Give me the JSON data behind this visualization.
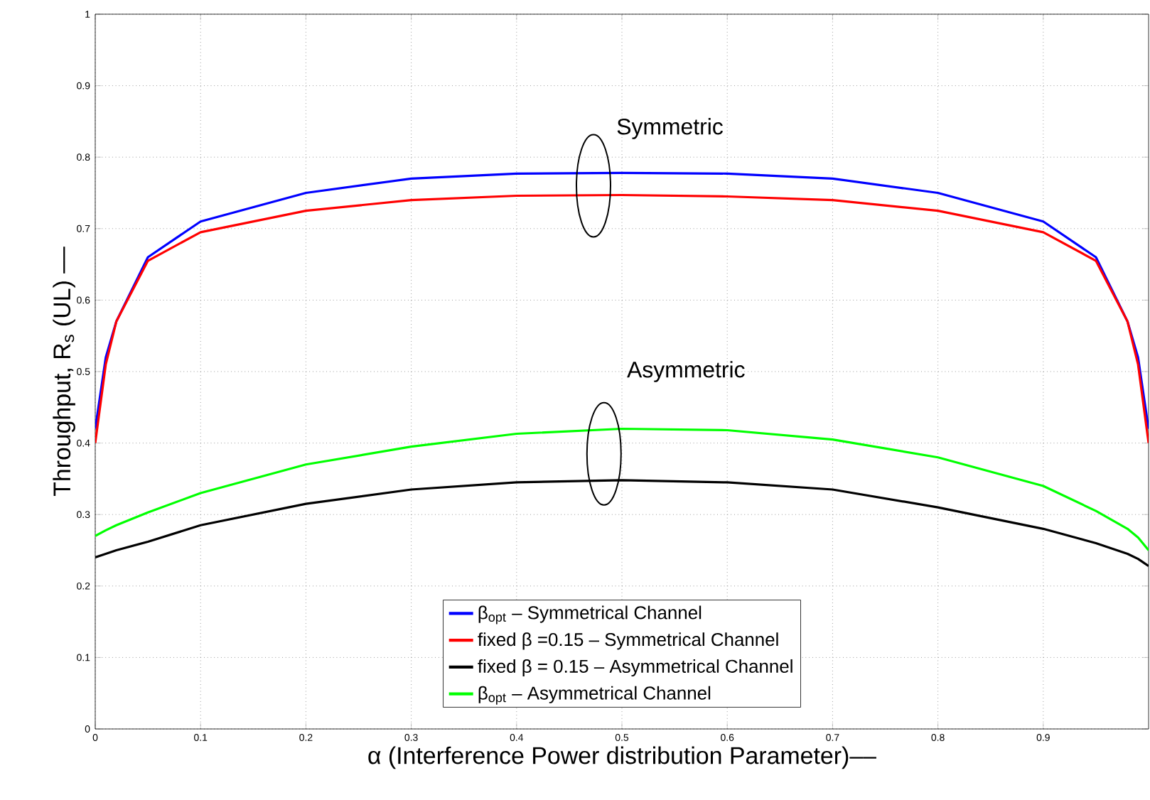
{
  "chart_data": {
    "type": "line",
    "xlabel": "α (Interference Power distribution Parameter)––",
    "ylabel": "Throughput, R$_{s}$ (UL) ––",
    "x": [
      0,
      0.01,
      0.02,
      0.05,
      0.1,
      0.2,
      0.3,
      0.4,
      0.5,
      0.6,
      0.7,
      0.8,
      0.9,
      0.95,
      0.98,
      0.99,
      1
    ],
    "series": [
      {
        "name": "β$_{opt}$ – Symmetrical Channel",
        "color": "#0000ff",
        "values": [
          0.42,
          0.52,
          0.57,
          0.66,
          0.71,
          0.75,
          0.77,
          0.777,
          0.778,
          0.777,
          0.77,
          0.75,
          0.71,
          0.66,
          0.57,
          0.52,
          0.42
        ]
      },
      {
        "name": "fixed β =0.15 – Symmetrical Channel",
        "color": "#ff0000",
        "values": [
          0.4,
          0.51,
          0.57,
          0.655,
          0.695,
          0.725,
          0.74,
          0.746,
          0.747,
          0.745,
          0.74,
          0.725,
          0.695,
          0.655,
          0.57,
          0.51,
          0.4
        ]
      },
      {
        "name": "fixed β = 0.15 – Asymmetrical Channel",
        "color": "#000000",
        "values": [
          0.24,
          0.245,
          0.25,
          0.262,
          0.285,
          0.315,
          0.335,
          0.345,
          0.348,
          0.345,
          0.335,
          0.31,
          0.28,
          0.26,
          0.245,
          0.238,
          0.228
        ]
      },
      {
        "name": "β$_{opt}$ – Asymmetrical Channel",
        "color": "#00ff00",
        "values": [
          0.27,
          0.278,
          0.285,
          0.303,
          0.33,
          0.37,
          0.395,
          0.413,
          0.42,
          0.418,
          0.405,
          0.38,
          0.34,
          0.305,
          0.28,
          0.268,
          0.25
        ]
      }
    ],
    "annotations": [
      "Symmetric",
      "Asymmetric"
    ],
    "xlim": [
      0,
      1
    ],
    "ylim": [
      0,
      1
    ],
    "xticks": [
      0,
      0.1,
      0.2,
      0.3,
      0.4,
      0.5,
      0.6,
      0.7,
      0.8,
      0.9
    ],
    "yticks": [
      0,
      0.1,
      0.2,
      0.3,
      0.4,
      0.5,
      0.6,
      0.7,
      0.8,
      0.9,
      1
    ],
    "grid": true,
    "legend": "bottom",
    "line_style": "solid",
    "marker": "none"
  }
}
